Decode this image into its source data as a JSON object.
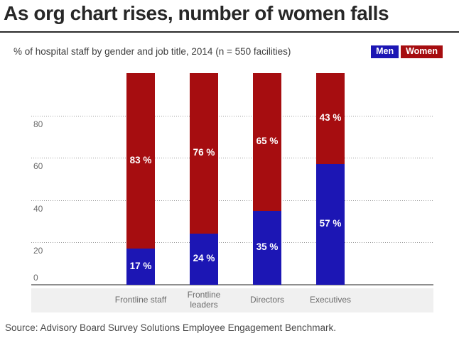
{
  "page": {
    "title": "As org chart rises, number of women falls",
    "subtitle": "% of hospital staff by gender and job title, 2014 (n = 550 facilities)",
    "source": "Source: Advisory Board Survey Solutions Employee Engagement Benchmark."
  },
  "legend": [
    {
      "label": "Men",
      "color": "#1c16b4"
    },
    {
      "label": "Women",
      "color": "#a60d10"
    }
  ],
  "colors": {
    "men": "#1c16b4",
    "women": "#a60d10",
    "title_text": "#272727",
    "axis_text": "#6b6b6b",
    "band_background": "#f0f0f0",
    "gridline": "#9b9b9b",
    "value_label_text": "#ffffff"
  },
  "chart_data": {
    "type": "bar",
    "stacked": true,
    "title": "% of hospital staff by gender and job title, 2014 (n = 550 facilities)",
    "categories": [
      "Frontline staff",
      "Frontline leaders",
      "Directors",
      "Executives"
    ],
    "category_labels_wrapped": [
      "Frontline staff",
      "Frontline\nleaders",
      "Directors",
      "Executives"
    ],
    "series": [
      {
        "name": "Men",
        "color": "#1c16b4",
        "values": [
          17,
          24,
          35,
          57
        ]
      },
      {
        "name": "Women",
        "color": "#a60d10",
        "values": [
          83,
          76,
          65,
          43
        ]
      }
    ],
    "value_label_suffix": " %",
    "value_labels": {
      "Men": [
        "17 %",
        "24 %",
        "35 %",
        "57 %"
      ],
      "Women": [
        "83 %",
        "76 %",
        "65 %",
        "43 %"
      ]
    },
    "xlabel": "",
    "ylabel": "",
    "y_ticks": [
      0,
      20,
      40,
      60,
      80
    ],
    "ylim": [
      0,
      100
    ],
    "grid": "horizontal-dotted",
    "legend_position": "top-right"
  }
}
